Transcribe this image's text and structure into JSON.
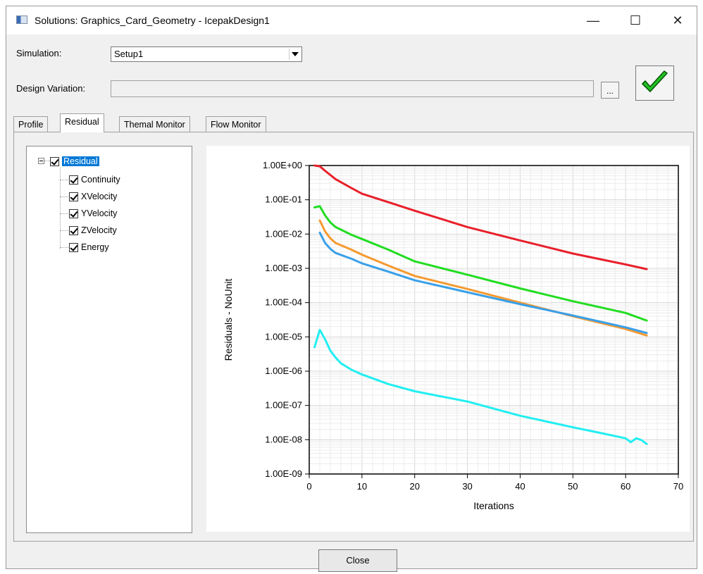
{
  "window": {
    "title": "Solutions: Graphics_Card_Geometry - IcepakDesign1",
    "minimize_glyph": "—",
    "maximize_glyph": "☐",
    "close_glyph": "✕"
  },
  "simulation": {
    "label": "Simulation:",
    "value": "Setup1"
  },
  "design_variation": {
    "label": "Design Variation:",
    "value": "",
    "browse_label": "..."
  },
  "status": {
    "icon": "check-icon",
    "color": "#22c222"
  },
  "tabs": [
    {
      "label": "Profile",
      "active": false
    },
    {
      "label": "Residual",
      "active": true
    },
    {
      "label": "Themal Monitor",
      "active": false
    },
    {
      "label": "Flow Monitor",
      "active": false
    }
  ],
  "tree": {
    "root": "Residual",
    "items": [
      "Continuity",
      "XVelocity",
      "YVelocity",
      "ZVelocity",
      "Energy"
    ]
  },
  "chart_data": {
    "type": "line",
    "title": "",
    "xlabel": "Iterations",
    "ylabel": "Residuals - NoUnit",
    "xlim": [
      0,
      70
    ],
    "ylim": [
      1e-09,
      1
    ],
    "yscale": "log",
    "x_ticks": [
      0,
      10,
      20,
      30,
      40,
      50,
      60,
      70
    ],
    "y_tick_labels": [
      "1.00E+00",
      "1.00E-01",
      "1.00E-02",
      "1.00E-03",
      "1.00E-04",
      "1.00E-05",
      "1.00E-06",
      "1.00E-07",
      "1.00E-08",
      "1.00E-09"
    ],
    "grid": true,
    "legend": "none",
    "series": [
      {
        "color": "#e8202a",
        "x": [
          1,
          2,
          3,
          5,
          8,
          10,
          15,
          20,
          30,
          40,
          50,
          60,
          64
        ],
        "y": [
          1.0,
          0.95,
          0.7,
          0.4,
          0.22,
          0.15,
          0.085,
          0.048,
          0.016,
          0.0065,
          0.0027,
          0.0013,
          0.00095
        ]
      },
      {
        "color": "#22dd22",
        "x": [
          1,
          2,
          3,
          4,
          5,
          8,
          10,
          15,
          20,
          30,
          40,
          50,
          60,
          64
        ],
        "y": [
          0.06,
          0.065,
          0.035,
          0.022,
          0.016,
          0.0095,
          0.0072,
          0.0035,
          0.0016,
          0.00065,
          0.00026,
          0.00011,
          5e-05,
          3e-05
        ]
      },
      {
        "color": "#f59a30",
        "x": [
          2,
          3,
          4,
          5,
          8,
          10,
          15,
          20,
          30,
          40,
          50,
          60,
          64
        ],
        "y": [
          0.025,
          0.012,
          0.0075,
          0.0055,
          0.0035,
          0.0025,
          0.0012,
          0.0006,
          0.00025,
          0.0001,
          4e-05,
          1.7e-05,
          1.1e-05
        ]
      },
      {
        "color": "#3aa0e8",
        "x": [
          2,
          3,
          4,
          5,
          8,
          10,
          15,
          20,
          30,
          40,
          50,
          60,
          64
        ],
        "y": [
          0.011,
          0.0055,
          0.0037,
          0.0028,
          0.0019,
          0.0014,
          0.0008,
          0.00045,
          0.0002,
          9e-05,
          4.2e-05,
          1.9e-05,
          1.3e-05
        ]
      },
      {
        "color": "#22eef2",
        "x": [
          1,
          2,
          3,
          4,
          5,
          6,
          8,
          10,
          15,
          20,
          30,
          40,
          50,
          55,
          60,
          61,
          62,
          63,
          64
        ],
        "y": [
          5e-06,
          1.6e-05,
          8.5e-06,
          4e-06,
          2.5e-06,
          1.7e-06,
          1.1e-06,
          8e-07,
          4.2e-07,
          2.6e-07,
          1.3e-07,
          5e-08,
          2.3e-08,
          1.6e-08,
          1.1e-08,
          8.5e-09,
          1.1e-08,
          9.8e-09,
          7.5e-09
        ]
      }
    ]
  },
  "buttons": {
    "close": "Close"
  }
}
